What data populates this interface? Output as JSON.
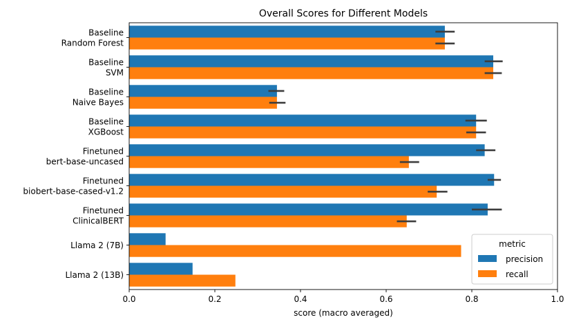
{
  "chart_data": {
    "type": "bar",
    "orientation": "horizontal",
    "title": "Overall Scores for Different Models",
    "xlabel": "score (macro averaged)",
    "ylabel": "",
    "xlim": [
      0,
      1.0
    ],
    "xticks": [
      "0.0",
      "0.2",
      "0.4",
      "0.6",
      "0.8",
      "1.0"
    ],
    "xtick_values": [
      0,
      0.2,
      0.4,
      0.6,
      0.8,
      1.0
    ],
    "grid": false,
    "categories": [
      [
        "Baseline",
        "Random Forest"
      ],
      [
        "Baseline",
        "SVM"
      ],
      [
        "Baseline",
        "Naive Bayes"
      ],
      [
        "Baseline",
        "XGBoost"
      ],
      [
        "Finetuned",
        "bert-base-uncased"
      ],
      [
        "Finetuned",
        "biobert-base-cased-v1.2"
      ],
      [
        "Finetuned",
        "ClinicalBERT"
      ],
      [
        "Llama 2 (7B)"
      ],
      [
        "Llama 2 (13B)"
      ]
    ],
    "series": [
      {
        "name": "precision",
        "color": "#1f77b4",
        "values": [
          0.737,
          0.85,
          0.345,
          0.81,
          0.83,
          0.852,
          0.837,
          0.085,
          0.148
        ],
        "error": [
          [
            0.715,
            0.76
          ],
          [
            0.83,
            0.872
          ],
          [
            0.325,
            0.362
          ],
          [
            0.785,
            0.835
          ],
          [
            0.81,
            0.855
          ],
          [
            0.837,
            0.868
          ],
          [
            0.8,
            0.87
          ],
          null,
          null
        ]
      },
      {
        "name": "recall",
        "color": "#ff7f0e",
        "values": [
          0.737,
          0.85,
          0.345,
          0.81,
          0.653,
          0.718,
          0.648,
          0.775,
          0.248
        ],
        "error": [
          [
            0.715,
            0.76
          ],
          [
            0.83,
            0.87
          ],
          [
            0.327,
            0.365
          ],
          [
            0.787,
            0.833
          ],
          [
            0.632,
            0.677
          ],
          [
            0.697,
            0.743
          ],
          [
            0.625,
            0.67
          ],
          null,
          null
        ]
      }
    ],
    "legend": {
      "title": "metric",
      "placement": "lower right"
    }
  }
}
